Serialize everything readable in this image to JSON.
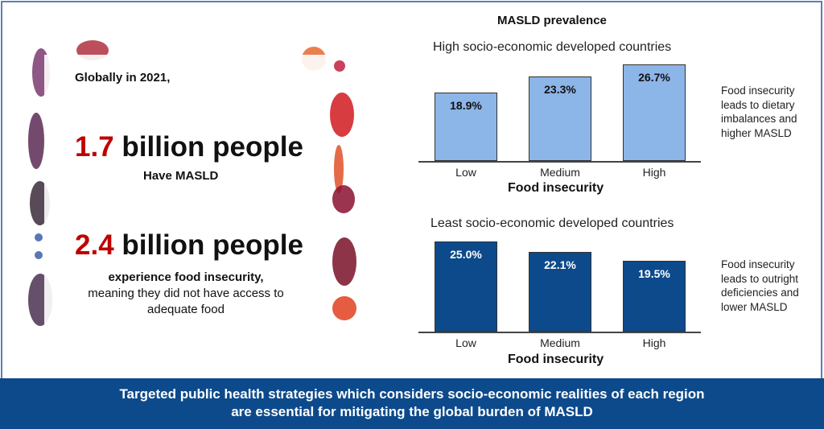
{
  "left": {
    "intro": "Globally in 2021,",
    "stat1_number": "1.7",
    "stat1_text": "billion people",
    "stat1_sub": "Have MASLD",
    "stat2_number": "2.4",
    "stat2_text": "billion people",
    "stat2_sub_bold": "experience food insecurity,",
    "stat2_sub_line2": "meaning they did not have access to",
    "stat2_sub_line3": "adequate food"
  },
  "title": "MASLD prevalence",
  "notes": {
    "high": [
      "Food insecurity",
      "leads to dietary",
      "imbalances and",
      "higher MASLD"
    ],
    "least": [
      "Food insecurity",
      "leads to outright",
      "deficiencies and",
      "lower MASLD"
    ]
  },
  "banner": {
    "line1": "Targeted public health strategies which considers socio-economic realities of each region",
    "line2": "are essential for mitigating the global burden of MASLD"
  },
  "colors": {
    "light_bar": "#8cb5e8",
    "dark_bar": "#0d4a8c",
    "accent_red": "#c00000"
  },
  "chart_data": [
    {
      "type": "bar",
      "title": "High socio-economic developed countries",
      "xlabel": "Food insecurity",
      "ylabel": "MASLD prevalence",
      "categories": [
        "Low",
        "Medium",
        "High"
      ],
      "values": [
        18.9,
        23.3,
        26.7
      ],
      "data_labels": [
        "18.9%",
        "23.3%",
        "26.7%"
      ],
      "ylim": [
        0,
        30
      ],
      "grid": false
    },
    {
      "type": "bar",
      "title": "Least socio-economic developed countries",
      "xlabel": "Food insecurity",
      "ylabel": "MASLD prevalence",
      "categories": [
        "Low",
        "Medium",
        "High"
      ],
      "values": [
        25.0,
        22.1,
        19.5
      ],
      "data_labels": [
        "25.0%",
        "22.1%",
        "19.5%"
      ],
      "ylim": [
        0,
        30
      ],
      "grid": false
    }
  ]
}
